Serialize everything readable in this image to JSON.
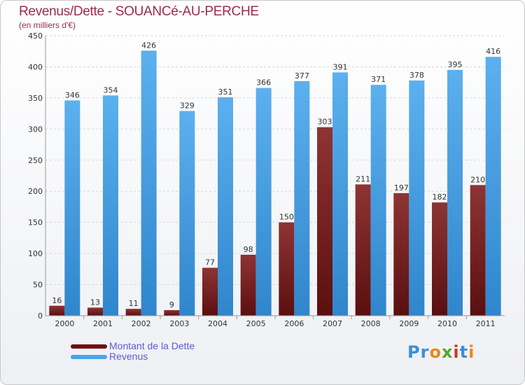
{
  "chart_data": {
    "type": "bar",
    "title": "Revenus/Dette - SOUANCé-AU-PERCHE",
    "subtitle": "(en milliers d'€)",
    "categories": [
      "2000",
      "2001",
      "2002",
      "2003",
      "2004",
      "2005",
      "2006",
      "2007",
      "2008",
      "2009",
      "2010",
      "2011"
    ],
    "series": [
      {
        "name": "Montant de la Dette",
        "color": "#7a1f1f",
        "values": [
          16,
          13,
          11,
          9,
          77,
          98,
          150,
          303,
          211,
          197,
          182,
          210
        ]
      },
      {
        "name": "Revenus",
        "color": "#4aa3e8",
        "values": [
          346,
          354,
          426,
          329,
          351,
          366,
          377,
          391,
          371,
          378,
          395,
          416
        ]
      }
    ],
    "ylim": [
      0,
      450
    ],
    "yticks": [
      0,
      50,
      100,
      150,
      200,
      250,
      300,
      350,
      400,
      450
    ],
    "grid": true,
    "legend": "bottom-left"
  },
  "logo": {
    "text": "Proxiti"
  }
}
